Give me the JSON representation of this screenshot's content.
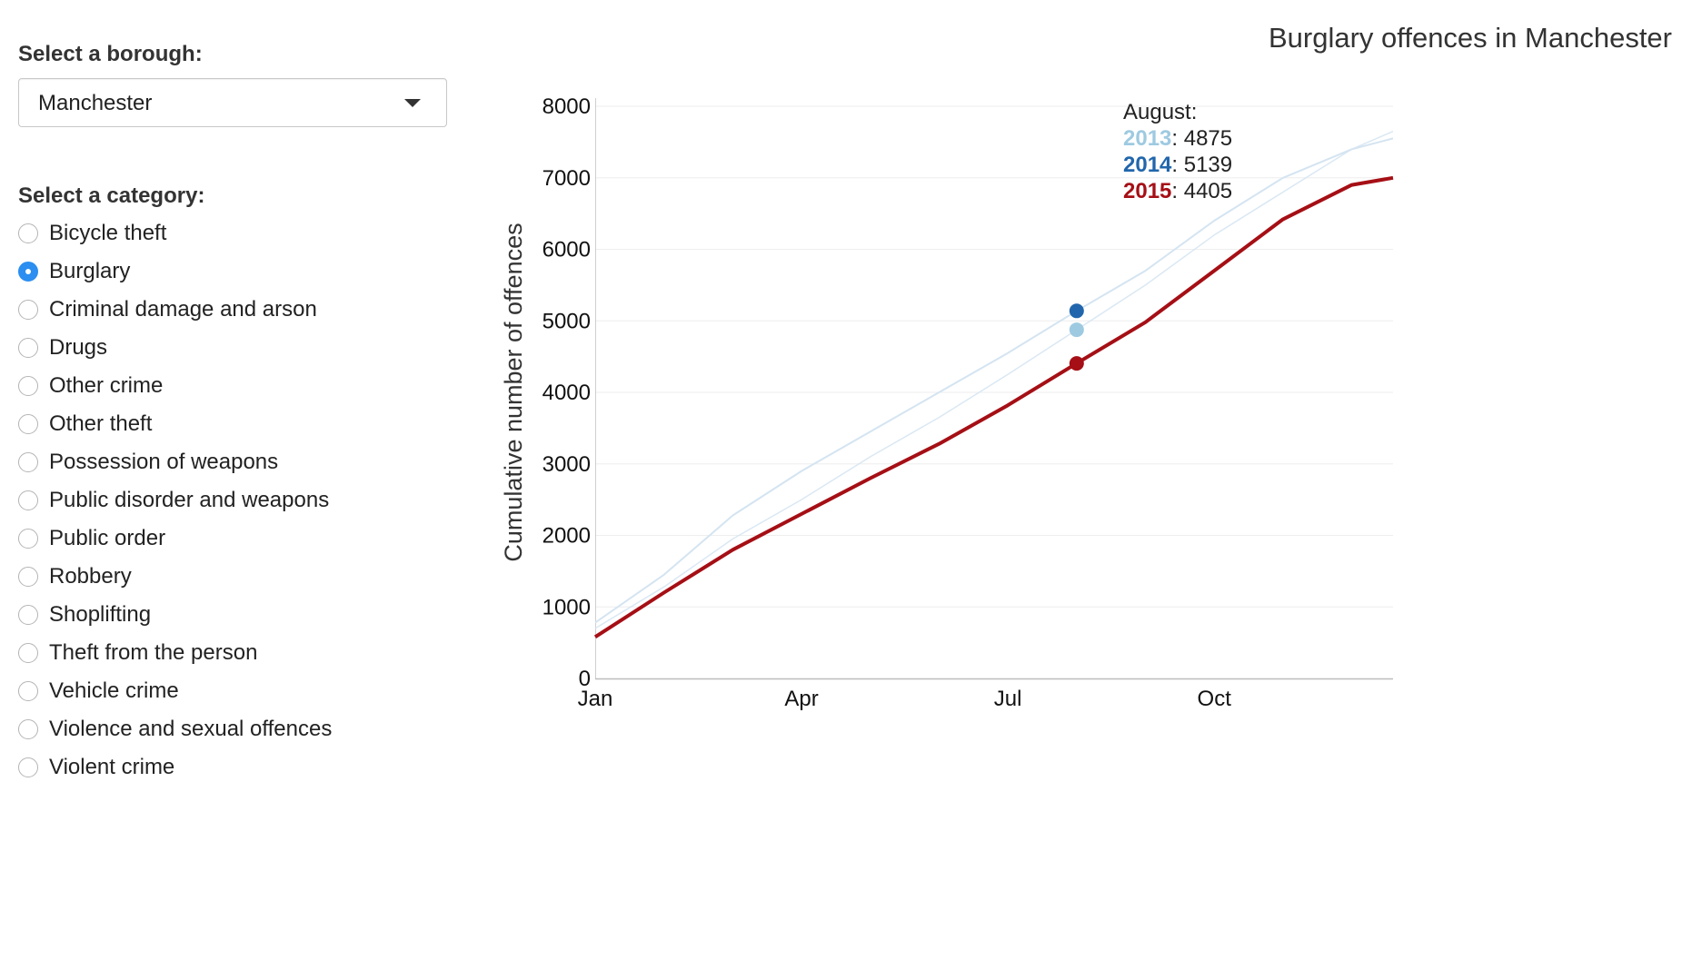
{
  "sidebar": {
    "borough_label": "Select a borough:",
    "borough_value": "Manchester",
    "category_label": "Select a category:",
    "categories": [
      {
        "label": "Bicycle theft",
        "checked": false
      },
      {
        "label": "Burglary",
        "checked": true
      },
      {
        "label": "Criminal damage and arson",
        "checked": false
      },
      {
        "label": "Drugs",
        "checked": false
      },
      {
        "label": "Other crime",
        "checked": false
      },
      {
        "label": "Other theft",
        "checked": false
      },
      {
        "label": "Possession of weapons",
        "checked": false
      },
      {
        "label": "Public disorder and weapons",
        "checked": false
      },
      {
        "label": "Public order",
        "checked": false
      },
      {
        "label": "Robbery",
        "checked": false
      },
      {
        "label": "Shoplifting",
        "checked": false
      },
      {
        "label": "Theft from the person",
        "checked": false
      },
      {
        "label": "Vehicle crime",
        "checked": false
      },
      {
        "label": "Violence and sexual offences",
        "checked": false
      },
      {
        "label": "Violent crime",
        "checked": false
      }
    ]
  },
  "colors": {
    "accent_radio": "#2b8ef0",
    "y2013": "#9ecae1",
    "y2014": "#2166ac",
    "y2015": "#a50f15",
    "line_faint": "#d4e4f1"
  },
  "chart_data": {
    "type": "line",
    "title": "Burglary offences in Manchester",
    "ylabel": "Cumulative number of offences",
    "xlabel": "",
    "ylim": [
      0,
      8000
    ],
    "xlim": [
      1,
      12.6
    ],
    "yticks": [
      0,
      1000,
      2000,
      3000,
      4000,
      5000,
      6000,
      7000,
      8000
    ],
    "xticks": [
      {
        "label": "Jan",
        "month": 1
      },
      {
        "label": "Apr",
        "month": 4
      },
      {
        "label": "Jul",
        "month": 7
      },
      {
        "label": "Oct",
        "month": 10
      }
    ],
    "x": [
      1,
      2,
      3,
      4,
      5,
      6,
      7,
      8,
      9,
      10,
      11,
      12,
      12.6
    ],
    "series": [
      {
        "name": "2013",
        "values": [
          700,
          1280,
          1950,
          2500,
          3100,
          3650,
          4250,
          4875,
          5500,
          6200,
          6800,
          7400,
          7650
        ]
      },
      {
        "name": "2014",
        "values": [
          780,
          1450,
          2280,
          2900,
          3450,
          4000,
          4550,
          5139,
          5700,
          6400,
          7000,
          7400,
          7550
        ]
      },
      {
        "name": "2015",
        "values": [
          580,
          1200,
          1800,
          2300,
          2800,
          3280,
          3820,
          4405,
          4980,
          5700,
          6420,
          6900,
          7000
        ]
      }
    ],
    "tooltip": {
      "heading": "August:",
      "month": 8,
      "entries": [
        {
          "year": "2013",
          "value": 4875
        },
        {
          "year": "2014",
          "value": 5139
        },
        {
          "year": "2015",
          "value": 4405
        }
      ]
    },
    "grid": true,
    "legend": "none"
  }
}
